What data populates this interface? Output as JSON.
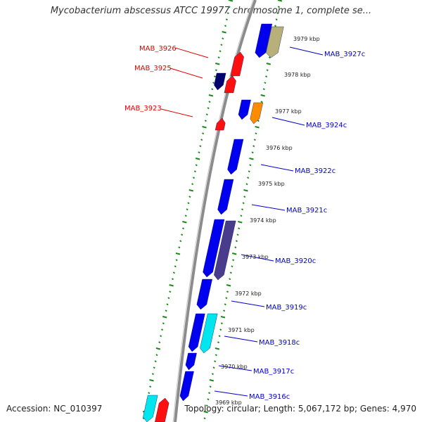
{
  "title": "Mycobacterium abscessus ATCC 19977 chromosome 1, complete se...",
  "footer": {
    "accession": "Accession: NC_010397",
    "summary": "Topology: circular; Length: 5,067,172 bp; Genes: 4,970"
  },
  "colors": {
    "backbone": "#8c8c8c",
    "tick": "#1b8a1b",
    "label_forward": "#e00000",
    "label_reverse": "#0000cc"
  },
  "scale_labels": [
    "3979 kbp",
    "3978 kbp",
    "3977 kbp",
    "3976 kbp",
    "3975 kbp",
    "3974 kbp",
    "3973 kbp",
    "3972 kbp",
    "3971 kbp",
    "3970 kbp",
    "3969 kbp"
  ],
  "forward_gene_labels": [
    "MAB_3926",
    "MAB_3925",
    "MAB_3923"
  ],
  "reverse_gene_labels": [
    "MAB_3927c",
    "MAB_3924c",
    "MAB_3922c",
    "MAB_3921c",
    "MAB_3920c",
    "MAB_3919c",
    "MAB_3918c",
    "MAB_3917c",
    "MAB_3916c"
  ]
}
